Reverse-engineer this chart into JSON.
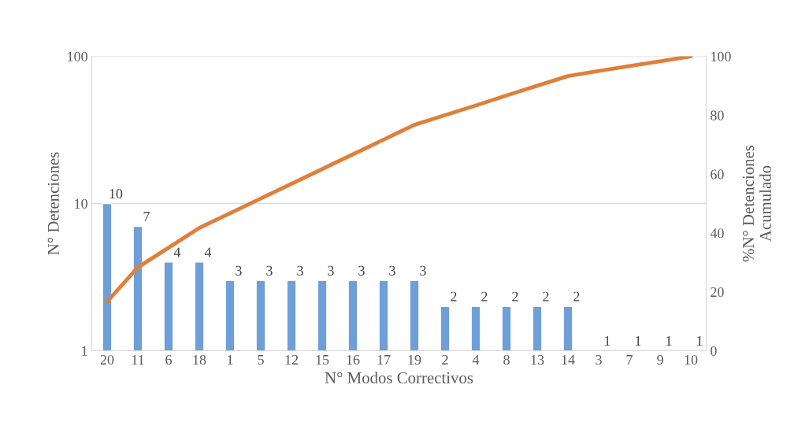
{
  "chart_data": {
    "type": "bar",
    "xlabel": "N° Modos Correctivos",
    "ylabel": "N° Detenciones",
    "y2label": "%N° Detenciones\nAcumulado",
    "categories": [
      "20",
      "11",
      "6",
      "18",
      "1",
      "5",
      "12",
      "15",
      "16",
      "17",
      "19",
      "2",
      "4",
      "8",
      "13",
      "14",
      "3",
      "7",
      "9",
      "10"
    ],
    "series": [
      {
        "color": "#6e9fd8",
        "values": [
          10,
          7,
          4,
          4,
          3,
          3,
          3,
          3,
          3,
          3,
          3,
          2,
          2,
          2,
          2,
          2,
          1,
          1,
          1,
          1
        ],
        "value_labels": [
          "10",
          "7",
          "4",
          "4",
          "3",
          "3",
          "3",
          "3",
          "3",
          "3",
          "3",
          "2",
          "2",
          "2",
          "2",
          "2",
          "1",
          "1",
          "1",
          "1"
        ]
      },
      {
        "type": "line",
        "axis": "y2",
        "color": "#e07f3a",
        "values": [
          16.7,
          28.3,
          35,
          41.7,
          46.7,
          51.7,
          56.7,
          61.7,
          66.7,
          71.7,
          76.7,
          80,
          83.3,
          86.7,
          90,
          93.3,
          95,
          96.7,
          98.3,
          100
        ]
      }
    ],
    "log": "y",
    "ylim": [
      1,
      100
    ],
    "yticks": [
      1,
      10,
      100
    ],
    "y2lim": [
      0,
      100
    ],
    "y2ticks": [
      0,
      20,
      40,
      60,
      80,
      100
    ],
    "grid": "y",
    "legend": false,
    "marker": "none"
  }
}
